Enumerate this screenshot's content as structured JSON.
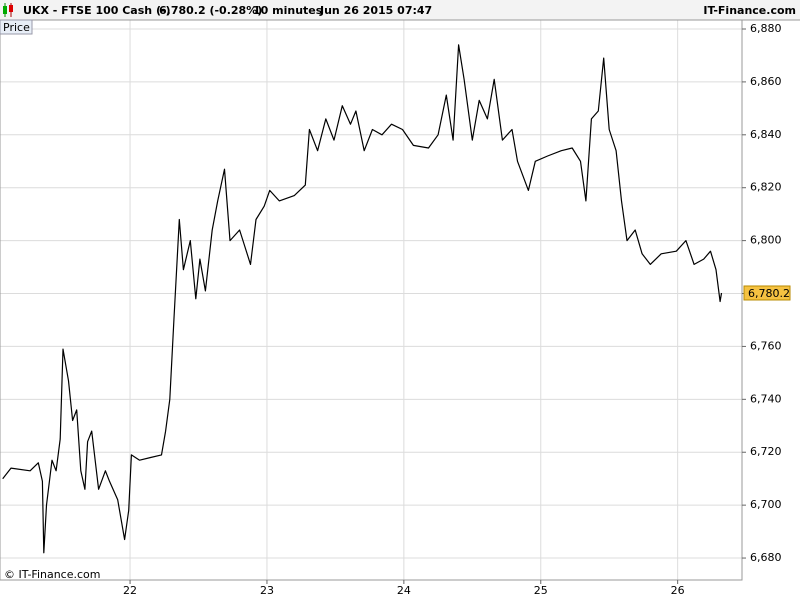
{
  "header": {
    "symbol": "UKX - FTSE 100 Cash (-)",
    "quote": "6,780.2 (-0.28%)",
    "interval": "10 minutes",
    "timestamp": "Jun 26 2015 07:47",
    "brand": "IT-Finance.com"
  },
  "chart_data": {
    "type": "line",
    "panel_label": "Price",
    "footer": "© IT-Finance.com",
    "series": [
      {
        "name": "Price",
        "color": "#000000",
        "x": [
          21.07,
          21.13,
          21.27,
          21.33,
          21.36,
          21.37,
          21.39,
          21.43,
          21.46,
          21.49,
          21.51,
          21.55,
          21.58,
          21.61,
          21.64,
          21.67,
          21.69,
          21.72,
          21.77,
          21.82,
          21.85,
          21.91,
          21.96,
          21.99,
          22.01,
          22.07,
          22.15,
          22.23,
          22.26,
          22.29,
          22.32,
          22.36,
          22.39,
          22.44,
          22.48,
          22.51,
          22.55,
          22.6,
          22.64,
          22.69,
          22.73,
          22.8,
          22.88,
          22.92,
          22.98,
          23.02,
          23.09,
          23.2,
          23.28,
          23.31,
          23.37,
          23.43,
          23.49,
          23.55,
          23.61,
          23.65,
          23.71,
          23.77,
          23.84,
          23.91,
          23.99,
          24.07,
          24.18,
          24.25,
          24.31,
          24.36,
          24.4,
          24.44,
          24.5,
          24.55,
          24.61,
          24.66,
          24.72,
          24.79,
          24.83,
          24.91,
          24.96,
          25.05,
          25.15,
          25.23,
          25.29,
          25.33,
          25.37,
          25.42,
          25.46,
          25.5,
          25.55,
          25.59,
          25.63,
          25.69,
          25.74,
          25.8,
          25.88,
          25.99,
          26.06,
          26.12,
          26.19,
          26.24,
          26.28,
          26.31,
          26.32
        ],
        "values": [
          6710,
          6714,
          6713,
          6716,
          6709,
          6682,
          6700,
          6717,
          6713,
          6725,
          6759,
          6747,
          6732,
          6736,
          6713,
          6706,
          6724,
          6728,
          6706,
          6713,
          6709,
          6702,
          6687,
          6698,
          6719,
          6717,
          6718,
          6719,
          6728,
          6740,
          6770,
          6808,
          6789,
          6800,
          6778,
          6793,
          6781,
          6804,
          6815,
          6827,
          6800,
          6804,
          6791,
          6808,
          6813,
          6819,
          6815,
          6817,
          6821,
          6842,
          6834,
          6846,
          6838,
          6851,
          6844,
          6849,
          6834,
          6842,
          6840,
          6844,
          6842,
          6836,
          6835,
          6840,
          6855,
          6838,
          6874,
          6861,
          6838,
          6853,
          6846,
          6861,
          6838,
          6842,
          6830,
          6819,
          6830,
          6832,
          6834,
          6835,
          6830,
          6815,
          6846,
          6849,
          6869,
          6842,
          6834,
          6815,
          6800,
          6804,
          6795,
          6791,
          6795,
          6796,
          6800,
          6791,
          6793,
          6796,
          6789,
          6777,
          6780.2
        ]
      }
    ],
    "last_price": {
      "value": 6780.2,
      "label": "6,780.2"
    },
    "xlim": [
      21.05,
      26.47
    ],
    "xticks": [
      22,
      23,
      24,
      25,
      26
    ],
    "ylim": [
      6671.7,
      6883.4
    ],
    "yticks": [
      {
        "value": 6680,
        "label": "6,680"
      },
      {
        "value": 6700,
        "label": "6,700"
      },
      {
        "value": 6720,
        "label": "6,720"
      },
      {
        "value": 6740,
        "label": "6,740"
      },
      {
        "value": 6760,
        "label": "6,760"
      },
      {
        "value": 6780,
        "label": "6,780"
      },
      {
        "value": 6800,
        "label": "6,800"
      },
      {
        "value": 6820,
        "label": "6,820"
      },
      {
        "value": 6840,
        "label": "6,840"
      },
      {
        "value": 6860,
        "label": "6,860"
      },
      {
        "value": 6880,
        "label": "6,880"
      }
    ],
    "grid": true
  }
}
